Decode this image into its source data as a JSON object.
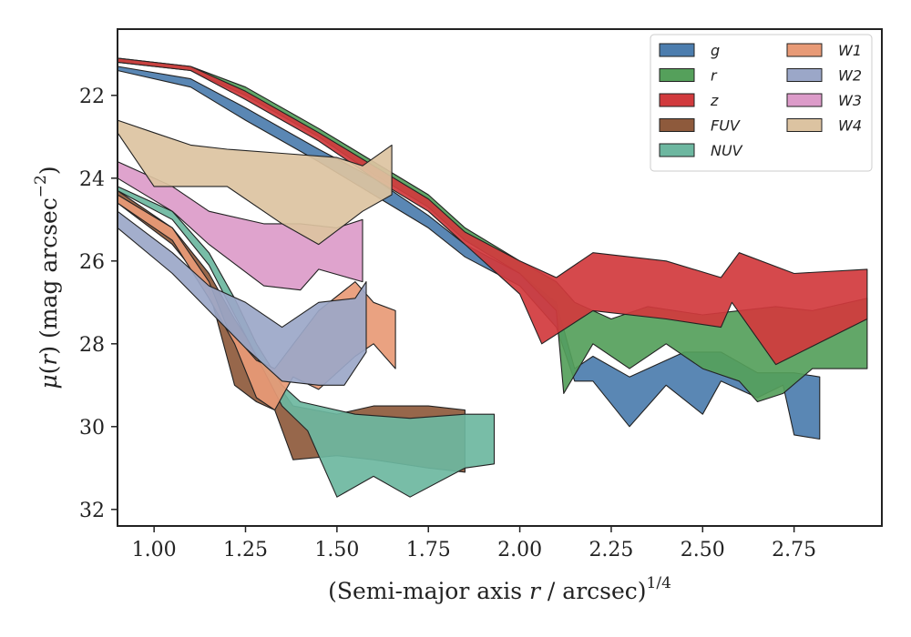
{
  "chart_data": {
    "type": "area",
    "xlabel": "(Semi-major axis r / arcsec)^(1/4)",
    "ylabel": "μ(r) (mag arcsec^−2)",
    "xlim": [
      0.9,
      2.99
    ],
    "ylim": [
      32.4,
      20.4
    ],
    "y_inverted": true,
    "xticks": [
      "1.00",
      "1.25",
      "1.50",
      "1.75",
      "2.00",
      "2.25",
      "2.50",
      "2.75"
    ],
    "xtick_values": [
      1.0,
      1.25,
      1.5,
      1.75,
      2.0,
      2.25,
      2.5,
      2.75
    ],
    "yticks": [
      "22",
      "24",
      "26",
      "28",
      "30",
      "32"
    ],
    "ytick_values": [
      22,
      24,
      26,
      28,
      30,
      32
    ],
    "grid": false,
    "legend_position": "top-right",
    "series": [
      {
        "name": "g",
        "color": "#4c7dae",
        "upper": [
          [
            0.9,
            21.3
          ],
          [
            1.1,
            21.6
          ],
          [
            1.25,
            22.3
          ],
          [
            1.45,
            23.3
          ],
          [
            1.6,
            24.0
          ],
          [
            1.75,
            24.9
          ],
          [
            1.85,
            25.6
          ],
          [
            2.0,
            26.3
          ],
          [
            2.1,
            27.0
          ],
          [
            2.15,
            28.6
          ],
          [
            2.2,
            28.3
          ],
          [
            2.3,
            28.8
          ],
          [
            2.45,
            28.2
          ],
          [
            2.55,
            28.2
          ],
          [
            2.65,
            28.7
          ],
          [
            2.75,
            28.7
          ],
          [
            2.82,
            28.8
          ]
        ],
        "lower": [
          [
            0.9,
            21.4
          ],
          [
            1.1,
            21.8
          ],
          [
            1.25,
            22.6
          ],
          [
            1.45,
            23.6
          ],
          [
            1.6,
            24.4
          ],
          [
            1.75,
            25.2
          ],
          [
            1.85,
            25.9
          ],
          [
            2.0,
            26.6
          ],
          [
            2.1,
            27.6
          ],
          [
            2.15,
            28.9
          ],
          [
            2.2,
            28.9
          ],
          [
            2.3,
            30.0
          ],
          [
            2.4,
            29.0
          ],
          [
            2.5,
            29.7
          ],
          [
            2.55,
            28.9
          ],
          [
            2.65,
            29.3
          ],
          [
            2.72,
            29.0
          ],
          [
            2.75,
            30.2
          ],
          [
            2.82,
            30.3
          ]
        ]
      },
      {
        "name": "r",
        "color": "#55a05b",
        "upper": [
          [
            0.9,
            21.1
          ],
          [
            1.1,
            21.3
          ],
          [
            1.25,
            21.8
          ],
          [
            1.45,
            22.8
          ],
          [
            1.6,
            23.6
          ],
          [
            1.75,
            24.4
          ],
          [
            1.85,
            25.2
          ],
          [
            2.0,
            26.0
          ],
          [
            2.1,
            26.5
          ],
          [
            2.15,
            27.0
          ],
          [
            2.25,
            27.4
          ],
          [
            2.35,
            27.1
          ],
          [
            2.5,
            27.3
          ],
          [
            2.6,
            27.2
          ],
          [
            2.7,
            27.1
          ],
          [
            2.8,
            27.2
          ],
          [
            2.95,
            26.9
          ]
        ],
        "lower": [
          [
            0.9,
            21.2
          ],
          [
            1.1,
            21.4
          ],
          [
            1.25,
            22.0
          ],
          [
            1.45,
            23.0
          ],
          [
            1.6,
            23.9
          ],
          [
            1.75,
            24.7
          ],
          [
            1.85,
            25.5
          ],
          [
            2.0,
            26.3
          ],
          [
            2.1,
            27.2
          ],
          [
            2.12,
            29.2
          ],
          [
            2.2,
            28.0
          ],
          [
            2.3,
            28.6
          ],
          [
            2.4,
            28.0
          ],
          [
            2.5,
            28.6
          ],
          [
            2.6,
            28.9
          ],
          [
            2.65,
            29.4
          ],
          [
            2.72,
            29.2
          ],
          [
            2.8,
            28.6
          ],
          [
            2.95,
            28.6
          ]
        ]
      },
      {
        "name": "z",
        "color": "#d13a3d",
        "upper": [
          [
            0.9,
            21.1
          ],
          [
            1.1,
            21.3
          ],
          [
            1.25,
            21.9
          ],
          [
            1.45,
            22.9
          ],
          [
            1.6,
            23.7
          ],
          [
            1.75,
            24.5
          ],
          [
            1.85,
            25.3
          ],
          [
            2.0,
            26.0
          ],
          [
            2.1,
            26.4
          ],
          [
            2.2,
            25.8
          ],
          [
            2.4,
            26.0
          ],
          [
            2.55,
            26.4
          ],
          [
            2.6,
            25.8
          ],
          [
            2.75,
            26.3
          ],
          [
            2.95,
            26.2
          ]
        ],
        "lower": [
          [
            0.9,
            21.2
          ],
          [
            1.1,
            21.4
          ],
          [
            1.25,
            22.1
          ],
          [
            1.45,
            23.1
          ],
          [
            1.6,
            24.0
          ],
          [
            1.75,
            24.8
          ],
          [
            1.85,
            25.6
          ],
          [
            2.0,
            26.8
          ],
          [
            2.06,
            28.0
          ],
          [
            2.2,
            27.2
          ],
          [
            2.4,
            27.4
          ],
          [
            2.55,
            27.6
          ],
          [
            2.58,
            27.0
          ],
          [
            2.7,
            28.5
          ],
          [
            2.95,
            27.4
          ]
        ]
      },
      {
        "name": "FUV",
        "color": "#8e5a3c",
        "upper": [
          [
            0.9,
            24.3
          ],
          [
            1.05,
            25.2
          ],
          [
            1.15,
            26.3
          ],
          [
            1.22,
            27.4
          ],
          [
            1.3,
            28.5
          ],
          [
            1.38,
            29.5
          ],
          [
            1.5,
            29.7
          ],
          [
            1.6,
            29.5
          ],
          [
            1.75,
            29.5
          ],
          [
            1.85,
            29.6
          ]
        ],
        "lower": [
          [
            0.9,
            24.6
          ],
          [
            1.05,
            25.6
          ],
          [
            1.15,
            26.7
          ],
          [
            1.22,
            29.0
          ],
          [
            1.28,
            29.4
          ],
          [
            1.33,
            29.6
          ],
          [
            1.38,
            30.8
          ],
          [
            1.5,
            30.7
          ],
          [
            1.6,
            30.8
          ],
          [
            1.75,
            31.0
          ],
          [
            1.85,
            31.1
          ]
        ]
      },
      {
        "name": "NUV",
        "color": "#6db7a0",
        "upper": [
          [
            0.9,
            24.2
          ],
          [
            1.05,
            24.8
          ],
          [
            1.15,
            25.8
          ],
          [
            1.22,
            26.9
          ],
          [
            1.28,
            28.0
          ],
          [
            1.35,
            29.0
          ],
          [
            1.4,
            29.4
          ],
          [
            1.55,
            29.7
          ],
          [
            1.7,
            29.8
          ],
          [
            1.85,
            29.7
          ],
          [
            1.93,
            29.7
          ]
        ],
        "lower": [
          [
            0.9,
            24.3
          ],
          [
            1.05,
            25.0
          ],
          [
            1.15,
            26.1
          ],
          [
            1.22,
            27.3
          ],
          [
            1.28,
            28.3
          ],
          [
            1.35,
            29.5
          ],
          [
            1.42,
            30.1
          ],
          [
            1.5,
            31.7
          ],
          [
            1.6,
            31.2
          ],
          [
            1.7,
            31.7
          ],
          [
            1.85,
            31.0
          ],
          [
            1.93,
            30.9
          ]
        ]
      },
      {
        "name": "W1",
        "color": "#e89a76",
        "upper": [
          [
            0.9,
            24.4
          ],
          [
            1.05,
            25.2
          ],
          [
            1.15,
            26.5
          ],
          [
            1.2,
            27.6
          ],
          [
            1.28,
            28.4
          ],
          [
            1.33,
            28.6
          ],
          [
            1.45,
            27.2
          ],
          [
            1.55,
            26.5
          ],
          [
            1.6,
            27.0
          ],
          [
            1.66,
            27.2
          ]
        ],
        "lower": [
          [
            0.9,
            24.6
          ],
          [
            1.05,
            25.5
          ],
          [
            1.15,
            26.9
          ],
          [
            1.22,
            28.0
          ],
          [
            1.28,
            29.3
          ],
          [
            1.33,
            29.6
          ],
          [
            1.38,
            28.8
          ],
          [
            1.45,
            29.1
          ],
          [
            1.55,
            28.3
          ],
          [
            1.6,
            28.0
          ],
          [
            1.66,
            28.6
          ]
        ]
      },
      {
        "name": "W2",
        "color": "#9ba7c8",
        "upper": [
          [
            0.9,
            24.8
          ],
          [
            1.05,
            25.8
          ],
          [
            1.15,
            26.6
          ],
          [
            1.25,
            27.0
          ],
          [
            1.35,
            27.6
          ],
          [
            1.45,
            27.0
          ],
          [
            1.55,
            26.9
          ],
          [
            1.58,
            26.5
          ]
        ],
        "lower": [
          [
            0.9,
            25.2
          ],
          [
            1.05,
            26.3
          ],
          [
            1.15,
            27.2
          ],
          [
            1.25,
            28.1
          ],
          [
            1.35,
            28.9
          ],
          [
            1.45,
            29.0
          ],
          [
            1.52,
            29.0
          ],
          [
            1.58,
            28.2
          ]
        ]
      },
      {
        "name": "W3",
        "color": "#dc9bc9",
        "upper": [
          [
            0.9,
            23.6
          ],
          [
            1.05,
            24.2
          ],
          [
            1.15,
            24.8
          ],
          [
            1.3,
            25.1
          ],
          [
            1.4,
            25.1
          ],
          [
            1.5,
            25.2
          ],
          [
            1.57,
            25.0
          ]
        ],
        "lower": [
          [
            0.9,
            24.0
          ],
          [
            1.05,
            24.8
          ],
          [
            1.15,
            25.6
          ],
          [
            1.3,
            26.6
          ],
          [
            1.4,
            26.7
          ],
          [
            1.45,
            26.2
          ],
          [
            1.57,
            26.5
          ]
        ]
      },
      {
        "name": "W4",
        "color": "#dcc3a1",
        "upper": [
          [
            0.9,
            22.6
          ],
          [
            1.0,
            22.9
          ],
          [
            1.1,
            23.2
          ],
          [
            1.2,
            23.3
          ],
          [
            1.35,
            23.4
          ],
          [
            1.5,
            23.5
          ],
          [
            1.57,
            23.7
          ],
          [
            1.65,
            23.2
          ]
        ],
        "lower": [
          [
            0.9,
            22.9
          ],
          [
            1.0,
            24.2
          ],
          [
            1.1,
            24.2
          ],
          [
            1.2,
            24.2
          ],
          [
            1.35,
            25.1
          ],
          [
            1.45,
            25.6
          ],
          [
            1.57,
            24.8
          ],
          [
            1.65,
            24.4
          ]
        ]
      }
    ]
  }
}
